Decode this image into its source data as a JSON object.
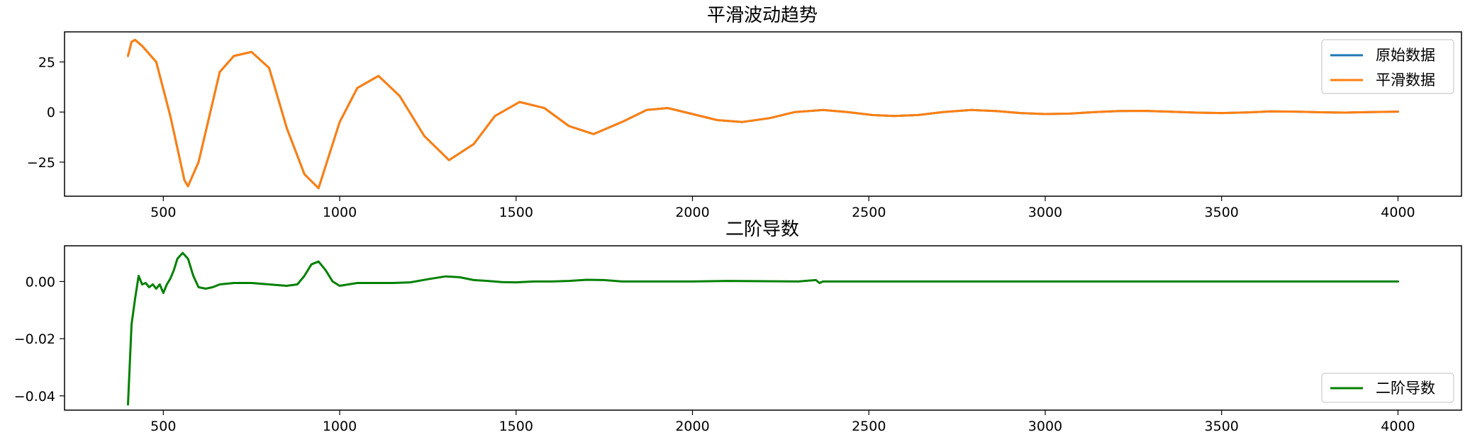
{
  "chart_data": [
    {
      "type": "line",
      "title": "平滑波动趋势",
      "xlabel": "",
      "ylabel": "",
      "xlim": [
        220,
        4180
      ],
      "ylim": [
        -42,
        40
      ],
      "xticks": [
        500,
        1000,
        1500,
        2000,
        2500,
        3000,
        3500,
        4000
      ],
      "xtick_labels": [
        "500",
        "1000",
        "1500",
        "2000",
        "2500",
        "3000",
        "3500",
        "4000"
      ],
      "yticks": [
        25,
        0,
        -25
      ],
      "ytick_labels": [
        "25",
        "0",
        "−25"
      ],
      "grid": false,
      "legend_position": "upper right",
      "series": [
        {
          "name": "原始数据",
          "color": "#1f77b4",
          "x": [
            400,
            410,
            420,
            440,
            480,
            520,
            560,
            570,
            600,
            660,
            700,
            750,
            800,
            850,
            900,
            940,
            1000,
            1050,
            1110,
            1170,
            1240,
            1310,
            1380,
            1440,
            1510,
            1580,
            1650,
            1720,
            1800,
            1870,
            1930,
            2000,
            2070,
            2140,
            2220,
            2290,
            2370,
            2440,
            2510,
            2570,
            2640,
            2710,
            2790,
            2860,
            2930,
            3000,
            3070,
            3140,
            3210,
            3280,
            3350,
            3430,
            3500,
            3570,
            3640,
            3710,
            3780,
            3850,
            3920,
            4000
          ],
          "y": [
            28,
            35,
            36,
            33,
            25,
            -2,
            -34,
            -37,
            -25,
            20,
            28,
            30,
            22,
            -8,
            -31,
            -38,
            -5,
            12,
            18,
            8,
            -12,
            -24,
            -16,
            -2,
            5,
            2,
            -7,
            -11,
            -5,
            1,
            2,
            -1,
            -4,
            -5,
            -3,
            0,
            1,
            0,
            -1.5,
            -2,
            -1.5,
            0,
            1,
            0.5,
            -0.5,
            -1,
            -0.8,
            0,
            0.5,
            0.6,
            0.2,
            -0.3,
            -0.5,
            -0.2,
            0.3,
            0.2,
            -0.1,
            -0.3,
            0,
            0.2
          ]
        },
        {
          "name": "平滑数据",
          "color": "#ff7f0e",
          "x": [
            400,
            410,
            420,
            440,
            480,
            520,
            560,
            570,
            600,
            660,
            700,
            750,
            800,
            850,
            900,
            940,
            1000,
            1050,
            1110,
            1170,
            1240,
            1310,
            1380,
            1440,
            1510,
            1580,
            1650,
            1720,
            1800,
            1870,
            1930,
            2000,
            2070,
            2140,
            2220,
            2290,
            2370,
            2440,
            2510,
            2570,
            2640,
            2710,
            2790,
            2860,
            2930,
            3000,
            3070,
            3140,
            3210,
            3280,
            3350,
            3430,
            3500,
            3570,
            3640,
            3710,
            3780,
            3850,
            3920,
            4000
          ],
          "y": [
            28,
            35,
            36,
            33,
            25,
            -2,
            -34,
            -37,
            -25,
            20,
            28,
            30,
            22,
            -8,
            -31,
            -38,
            -5,
            12,
            18,
            8,
            -12,
            -24,
            -16,
            -2,
            5,
            2,
            -7,
            -11,
            -5,
            1,
            2,
            -1,
            -4,
            -5,
            -3,
            0,
            1,
            0,
            -1.5,
            -2,
            -1.5,
            0,
            1,
            0.5,
            -0.5,
            -1,
            -0.8,
            0,
            0.5,
            0.6,
            0.2,
            -0.3,
            -0.5,
            -0.2,
            0.3,
            0.2,
            -0.1,
            -0.3,
            0,
            0.2
          ]
        }
      ]
    },
    {
      "type": "line",
      "title": "二阶导数",
      "xlabel": "",
      "ylabel": "",
      "xlim": [
        220,
        4180
      ],
      "ylim": [
        -0.045,
        0.0125
      ],
      "xticks": [
        500,
        1000,
        1500,
        2000,
        2500,
        3000,
        3500,
        4000
      ],
      "xtick_labels": [
        "500",
        "1000",
        "1500",
        "2000",
        "2500",
        "3000",
        "3500",
        "4000"
      ],
      "yticks": [
        0.0,
        -0.02,
        -0.04
      ],
      "ytick_labels": [
        "0.00",
        "−0.02",
        "−0.04"
      ],
      "grid": false,
      "legend_position": "lower right",
      "series": [
        {
          "name": "二阶导数",
          "color": "#008000",
          "x": [
            400,
            410,
            420,
            430,
            440,
            450,
            460,
            470,
            480,
            490,
            500,
            510,
            520,
            530,
            540,
            555,
            570,
            585,
            600,
            620,
            640,
            660,
            700,
            750,
            800,
            850,
            880,
            900,
            920,
            940,
            960,
            980,
            1000,
            1050,
            1100,
            1150,
            1200,
            1250,
            1300,
            1340,
            1380,
            1420,
            1460,
            1500,
            1550,
            1600,
            1650,
            1700,
            1750,
            1800,
            1900,
            2000,
            2100,
            2200,
            2300,
            2350,
            2360,
            2370,
            2400,
            2500,
            2600,
            2700,
            2800,
            2900,
            3000,
            3100,
            3200,
            3300,
            3400,
            3500,
            3600,
            3700,
            3800,
            3900,
            4000
          ],
          "y": [
            -0.043,
            -0.015,
            -0.006,
            0.002,
            -0.001,
            -0.0005,
            -0.002,
            -0.001,
            -0.0025,
            -0.001,
            -0.004,
            -0.001,
            0.001,
            0.004,
            0.008,
            0.01,
            0.008,
            0.002,
            -0.002,
            -0.0025,
            -0.002,
            -0.001,
            -0.0005,
            -0.0005,
            -0.001,
            -0.0015,
            -0.001,
            0.002,
            0.006,
            0.007,
            0.004,
            0.0,
            -0.0015,
            -0.0005,
            -0.0005,
            -0.0005,
            -0.0003,
            0.0008,
            0.0018,
            0.0015,
            0.0005,
            0.0002,
            -0.0002,
            -0.0003,
            0.0,
            0.0,
            0.0002,
            0.0006,
            0.0005,
            0.0,
            0.0,
            0.0,
            0.0002,
            0.0001,
            0.0,
            0.0005,
            -0.0005,
            0.0,
            0.0,
            0.0,
            0.0,
            0.0,
            0.0,
            0.0,
            0.0,
            0.0,
            0.0,
            0.0,
            0.0,
            0.0,
            0.0,
            0.0,
            0.0,
            0.0,
            0.0
          ]
        }
      ]
    }
  ]
}
